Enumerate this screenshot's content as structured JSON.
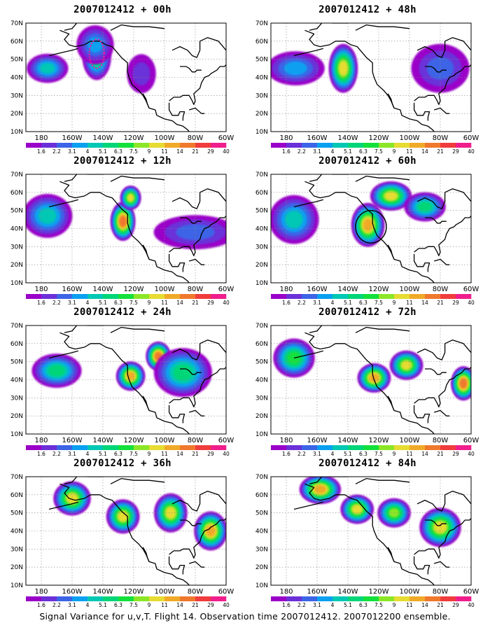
{
  "panels": [
    {
      "title": "2007012412 + 00h",
      "lead_hours": 0,
      "column": "left",
      "row": 1,
      "markers": [
        "verification-region-dotted-ellipse"
      ]
    },
    {
      "title": "2007012412 + 48h",
      "lead_hours": 48,
      "column": "right",
      "row": 1,
      "markers": []
    },
    {
      "title": "2007012412 + 12h",
      "lead_hours": 12,
      "column": "left",
      "row": 2,
      "markers": []
    },
    {
      "title": "2007012412 + 60h",
      "lead_hours": 60,
      "column": "right",
      "row": 2,
      "markers": [
        "verification-region-circle"
      ]
    },
    {
      "title": "2007012412 + 24h",
      "lead_hours": 24,
      "column": "left",
      "row": 3,
      "markers": []
    },
    {
      "title": "2007012412 + 72h",
      "lead_hours": 72,
      "column": "right",
      "row": 3,
      "markers": []
    },
    {
      "title": "2007012412 + 36h",
      "lead_hours": 36,
      "column": "left",
      "row": 4,
      "markers": []
    },
    {
      "title": "2007012412 + 84h",
      "lead_hours": 84,
      "column": "right",
      "row": 4,
      "markers": []
    }
  ],
  "axes": {
    "lat_labels": [
      "10N",
      "20N",
      "30N",
      "40N",
      "50N",
      "60N",
      "70N"
    ],
    "lon_labels": [
      "180",
      "160W",
      "140W",
      "120W",
      "100W",
      "80W",
      "60W"
    ],
    "lat_range": [
      10,
      70
    ],
    "lon_range": [
      -190,
      -60
    ],
    "grid": "dotted"
  },
  "colorbar": {
    "labels": [
      "1.6",
      "2.2",
      "3.1",
      "4",
      "5.1",
      "6.3",
      "7.5",
      "9",
      "11",
      "14",
      "21",
      "29",
      "40"
    ],
    "colors": [
      "#9a00c8",
      "#6b30d8",
      "#3c64e6",
      "#0aa0f0",
      "#00c8b4",
      "#00d678",
      "#14e03c",
      "#8ce628",
      "#e6dc32",
      "#f0aa28",
      "#f0782d",
      "#f03c3c",
      "#f01e8c"
    ]
  },
  "chart_data": {
    "type": "heatmap",
    "variable": "Signal Variance",
    "levels": [
      1.6,
      2.2,
      3.1,
      4,
      5.1,
      6.3,
      7.5,
      9,
      11,
      14,
      21,
      29,
      40
    ],
    "panels": [
      {
        "lead": "00h",
        "blobs": [
          {
            "lon": -176,
            "lat": 45,
            "rlon": 10,
            "rlat": 6,
            "level": 4
          },
          {
            "lon": -144,
            "lat": 52,
            "rlon": 7,
            "rlat": 10,
            "level": 6
          },
          {
            "lon": -145,
            "lat": 58,
            "rlon": 9,
            "rlat": 8,
            "level": 3
          },
          {
            "lon": -115,
            "lat": 42,
            "rlon": 7,
            "rlat": 8,
            "level": 1
          }
        ]
      },
      {
        "lead": "12h",
        "blobs": [
          {
            "lon": -174,
            "lat": 45,
            "rlon": 14,
            "rlat": 7,
            "level": 3
          },
          {
            "lon": -143,
            "lat": 45,
            "rlon": 7,
            "rlat": 10,
            "level": 8
          },
          {
            "lon": -80,
            "lat": 45,
            "rlon": 14,
            "rlat": 10,
            "level": 2
          }
        ]
      },
      {
        "lead": "24h",
        "blobs": [
          {
            "lon": -176,
            "lat": 47,
            "rlon": 12,
            "rlat": 9,
            "level": 4
          },
          {
            "lon": -127,
            "lat": 44,
            "rlon": 6,
            "rlat": 8,
            "level": 10
          },
          {
            "lon": -122,
            "lat": 57,
            "rlon": 5,
            "rlat": 5,
            "level": 8
          },
          {
            "lon": -80,
            "lat": 38,
            "rlon": 20,
            "rlat": 7,
            "level": 2
          }
        ]
      },
      {
        "lead": "36h",
        "blobs": [
          {
            "lon": -175,
            "lat": 45,
            "rlon": 12,
            "rlat": 10,
            "level": 4
          },
          {
            "lon": -127,
            "lat": 42,
            "rlon": 8,
            "rlat": 9,
            "level": 9
          },
          {
            "lon": -112,
            "lat": 58,
            "rlon": 10,
            "rlat": 6,
            "level": 8
          },
          {
            "lon": -90,
            "lat": 52,
            "rlon": 10,
            "rlat": 6,
            "level": 5
          }
        ]
      },
      {
        "lead": "48h",
        "blobs": [
          {
            "lon": -170,
            "lat": 45,
            "rlon": 12,
            "rlat": 7,
            "level": 5
          },
          {
            "lon": -122,
            "lat": 42,
            "rlon": 7,
            "rlat": 6,
            "level": 9
          },
          {
            "lon": -104,
            "lat": 53,
            "rlon": 6,
            "rlat": 6,
            "level": 10
          },
          {
            "lon": -88,
            "lat": 44,
            "rlon": 14,
            "rlat": 10,
            "level": 5
          }
        ]
      },
      {
        "lead": "60h",
        "blobs": [
          {
            "lon": -175,
            "lat": 52,
            "rlon": 10,
            "rlat": 8,
            "level": 6
          },
          {
            "lon": -123,
            "lat": 41,
            "rlon": 8,
            "rlat": 6,
            "level": 9
          },
          {
            "lon": -102,
            "lat": 48,
            "rlon": 8,
            "rlat": 6,
            "level": 8
          },
          {
            "lon": -65,
            "lat": 38,
            "rlon": 6,
            "rlat": 7,
            "level": 10
          }
        ]
      },
      {
        "lead": "72h",
        "blobs": [
          {
            "lon": -160,
            "lat": 58,
            "rlon": 9,
            "rlat": 7,
            "level": 8
          },
          {
            "lon": -127,
            "lat": 48,
            "rlon": 8,
            "rlat": 7,
            "level": 8
          },
          {
            "lon": -96,
            "lat": 50,
            "rlon": 8,
            "rlat": 8,
            "level": 8
          },
          {
            "lon": -70,
            "lat": 40,
            "rlon": 8,
            "rlat": 8,
            "level": 9
          }
        ]
      },
      {
        "lead": "84h",
        "blobs": [
          {
            "lon": -158,
            "lat": 63,
            "rlon": 10,
            "rlat": 6,
            "level": 9
          },
          {
            "lon": -134,
            "lat": 52,
            "rlon": 8,
            "rlat": 6,
            "level": 8
          },
          {
            "lon": -110,
            "lat": 50,
            "rlon": 8,
            "rlat": 6,
            "level": 7
          },
          {
            "lon": -80,
            "lat": 42,
            "rlon": 10,
            "rlat": 8,
            "level": 8
          }
        ]
      }
    ]
  },
  "footer": {
    "caption": "Signal Variance for u,v,T. Flight 14. Observation time 2007012412. 2007012200 ensemble."
  }
}
